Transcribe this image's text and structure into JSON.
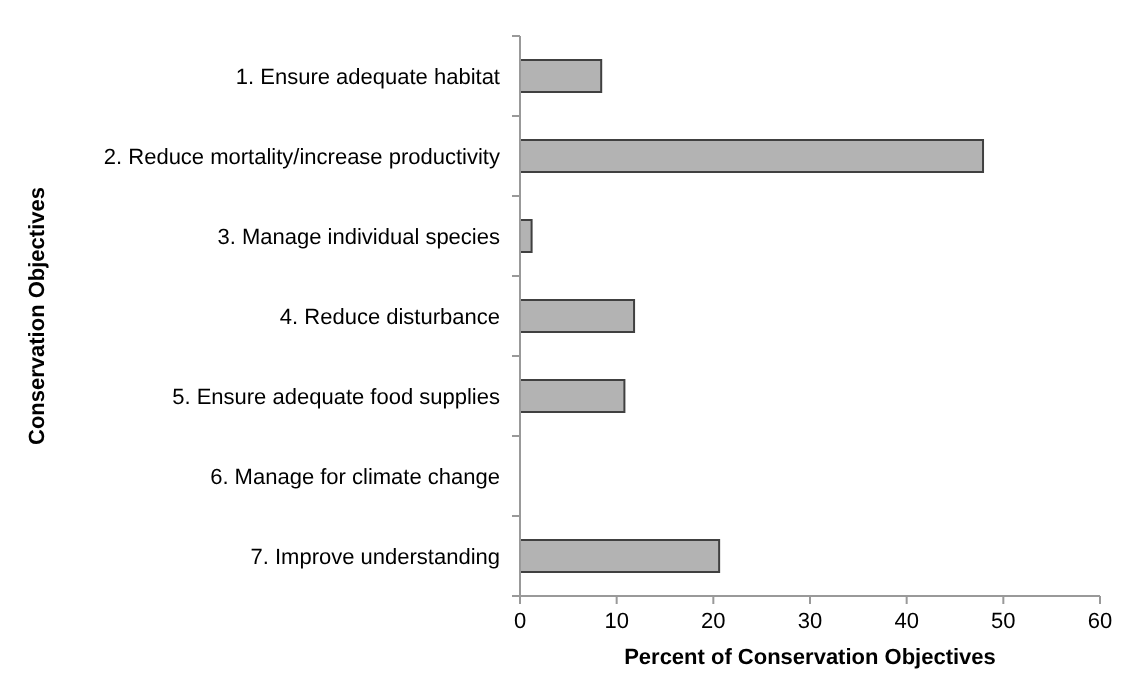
{
  "chart_data": {
    "type": "bar",
    "orientation": "horizontal",
    "xlabel": "Percent of Conservation Objectives",
    "ylabel": "Conservation Objectives",
    "categories": [
      "1. Ensure adequate habitat",
      "2. Reduce mortality/increase productivity",
      "3. Manage individual species",
      "4. Reduce disturbance",
      "5. Ensure adequate food supplies",
      "6. Manage for climate change",
      "7. Improve understanding"
    ],
    "values": [
      8.4,
      47.9,
      1.2,
      11.8,
      10.8,
      0,
      20.6
    ],
    "color": "#b3b3b3",
    "xlim": [
      0,
      60
    ],
    "xticks": [
      0,
      10,
      20,
      30,
      40,
      50,
      60
    ],
    "grid": false
  }
}
